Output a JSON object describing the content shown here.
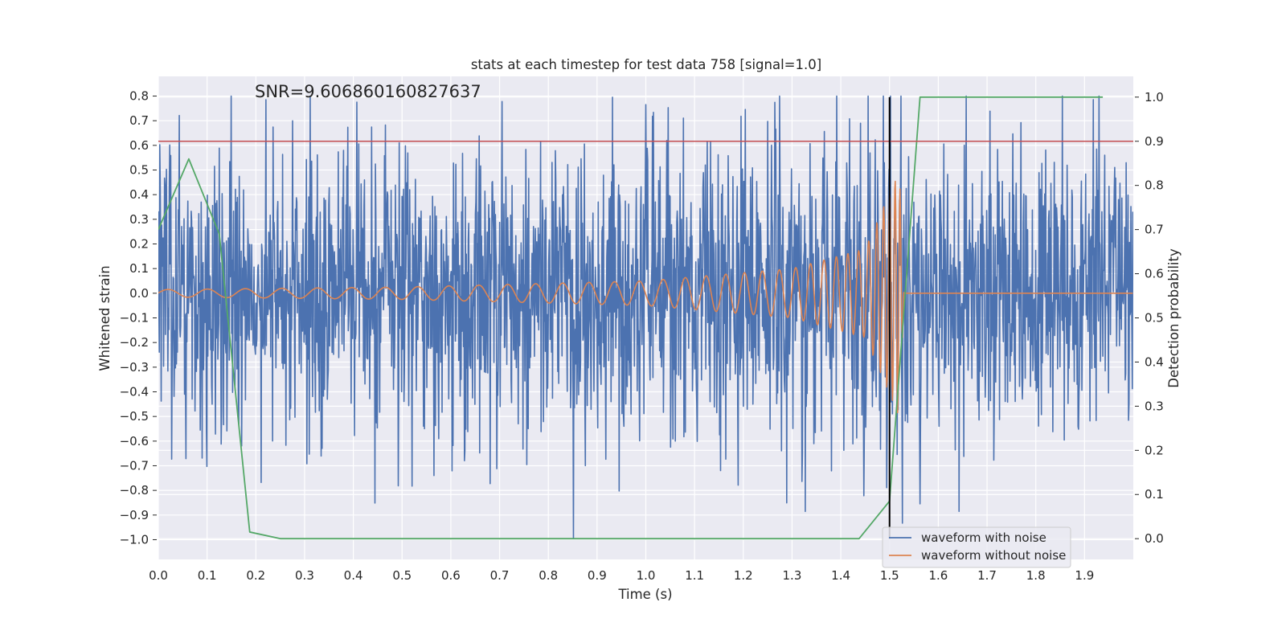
{
  "chart_data": {
    "type": "line",
    "title": "stats at each timestep for test data 758 [signal=1.0]",
    "xlabel": "Time (s)",
    "ylabel": "Whitened strain",
    "ylabel_right": "Detection probability",
    "annotation": "SNR=9.606860160827637",
    "xlim": [
      0.0,
      2.0
    ],
    "ylim": [
      -1.08,
      0.88
    ],
    "ylim_right": [
      -0.047,
      1.047
    ],
    "x_ticks": [
      "0.0",
      "0.1",
      "0.2",
      "0.3",
      "0.4",
      "0.5",
      "0.6",
      "0.7",
      "0.8",
      "0.9",
      "1.0",
      "1.1",
      "1.2",
      "1.3",
      "1.4",
      "1.5",
      "1.6",
      "1.7",
      "1.8",
      "1.9"
    ],
    "y_ticks": [
      "0.8",
      "0.7",
      "0.6",
      "0.5",
      "0.4",
      "0.3",
      "0.2",
      "0.1",
      "0.0",
      "−0.1",
      "−0.2",
      "−0.3",
      "−0.4",
      "−0.5",
      "−0.6",
      "−0.7",
      "−0.8",
      "−0.9",
      "−1.0"
    ],
    "y_right_ticks": [
      "1.0",
      "0.9",
      "0.8",
      "0.7",
      "0.6",
      "0.5",
      "0.4",
      "0.3",
      "0.2",
      "0.1",
      "0.0"
    ],
    "grid": true,
    "legend_position": "lower-right",
    "series": [
      {
        "name": "waveform with noise",
        "color": "#4c72b0",
        "axis": "left",
        "kind": "noisy",
        "sample_rate": 1024,
        "noise_amplitude": 0.3,
        "noise_seed": 758,
        "range": [
          -1.0,
          0.8
        ]
      },
      {
        "name": "waveform without noise",
        "color": "#dd8452",
        "axis": "left",
        "kind": "chirp",
        "merger_time": 1.52,
        "envelope": [
          [
            0.0,
            0.015
          ],
          [
            0.5,
            0.025
          ],
          [
            1.0,
            0.05
          ],
          [
            1.3,
            0.1
          ],
          [
            1.45,
            0.18
          ],
          [
            1.52,
            0.5
          ],
          [
            1.53,
            0.0
          ]
        ],
        "frequency": [
          [
            0.0,
            12
          ],
          [
            0.5,
            15
          ],
          [
            1.0,
            20
          ],
          [
            1.3,
            30
          ],
          [
            1.45,
            48
          ],
          [
            1.52,
            100
          ]
        ]
      },
      {
        "color": "#55a868",
        "axis": "right",
        "kind": "probability",
        "x": [
          0.0,
          0.0625,
          0.125,
          0.1875,
          0.25,
          0.3125,
          0.375,
          0.4375,
          0.5,
          0.5625,
          0.625,
          0.6875,
          0.75,
          0.8125,
          0.875,
          0.9375,
          1.0,
          1.0625,
          1.125,
          1.1875,
          1.25,
          1.3125,
          1.375,
          1.4375,
          1.5,
          1.5625,
          1.625,
          1.6875,
          1.75,
          1.8125,
          1.875,
          1.9375
        ],
        "y": [
          0.7,
          0.86,
          0.69,
          0.015,
          0.0,
          0.0,
          0.0,
          0.0,
          0.0,
          0.0,
          0.0,
          0.0,
          0.0,
          0.0,
          0.0,
          0.0,
          0.0,
          0.0,
          0.0,
          0.0,
          0.0,
          0.0,
          0.0,
          0.0,
          0.085,
          1.0,
          1.0,
          1.0,
          1.0,
          1.0,
          1.0,
          1.0
        ]
      }
    ],
    "threshold": {
      "axis": "right",
      "value": 0.9,
      "color": "#c44e52"
    },
    "vline": {
      "x": 1.5,
      "color": "#000000"
    }
  }
}
